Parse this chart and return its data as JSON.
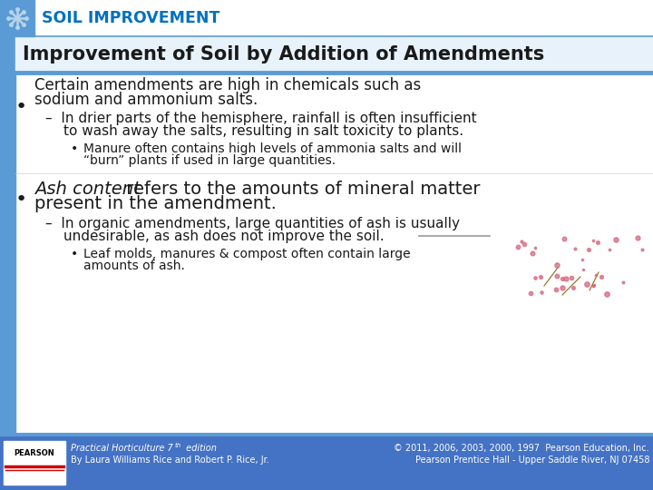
{
  "bg_color": "#ffffff",
  "header_top_color": "#5b9bd5",
  "left_bar_color": "#5b9bd5",
  "title_top": "SOIL IMPROVEMENT",
  "title_top_color": "#0070c0",
  "title_main": "Improvement of Soil by Addition of Amendments",
  "title_main_color": "#1a1a1a",
  "footer_bg": "#4472c4",
  "footer_left1": "Practical Horticulture 7",
  "footer_left1b": "th",
  "footer_left1c": " edition",
  "footer_left2": "By Laura Williams Rice and Robert P. Rice, Jr.",
  "footer_right1": "© 2011, 2006, 2003, 2000, 1997  Pearson Education, Inc.",
  "footer_right2": "Pearson Prentice Hall - Upper Saddle River, NJ 07458"
}
